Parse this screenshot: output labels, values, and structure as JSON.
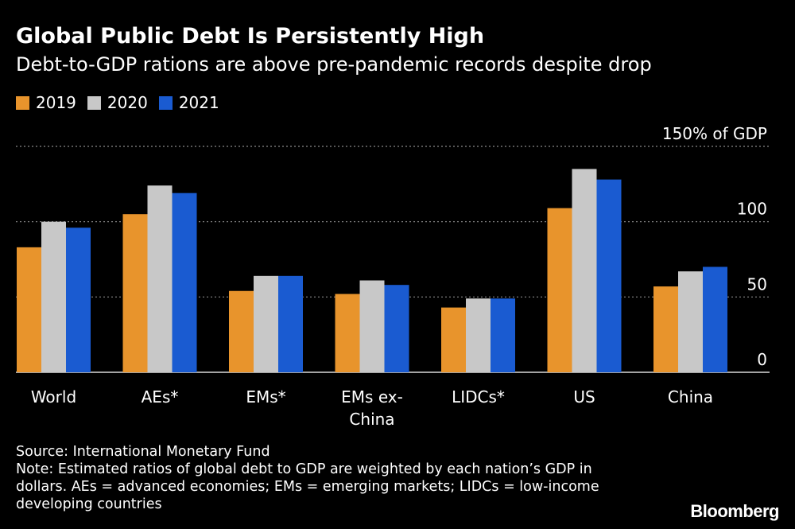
{
  "title": "Global Public Debt Is Persistently High",
  "subtitle": "Debt-to-GDP rations are above pre-pandemic records despite drop",
  "source": "Source: International Monetary Fund",
  "note_lines": [
    "Note: Estimated ratios of global debt to GDP are weighted by each nation’s GDP in",
    "dollars. AEs = advanced economies; EMs = emerging markets; LIDCs = low-income",
    "developing countries"
  ],
  "brand": "Bloomberg",
  "colors": {
    "2019": "#E8942C",
    "2020": "#C8C8C8",
    "2021": "#1A5BD1",
    "grid": "#8A8A8A",
    "background": "#000000",
    "text": "#FFFFFF"
  },
  "chart_data": {
    "type": "bar",
    "categories": [
      [
        "World"
      ],
      [
        "AEs*"
      ],
      [
        "EMs*"
      ],
      [
        "EMs ex-",
        "China"
      ],
      [
        "LIDCs*"
      ],
      [
        "US"
      ],
      [
        "China"
      ]
    ],
    "series": [
      {
        "name": "2019",
        "values": [
          83,
          105,
          54,
          52,
          43,
          109,
          57
        ]
      },
      {
        "name": "2020",
        "values": [
          100,
          124,
          64,
          61,
          49,
          135,
          67
        ]
      },
      {
        "name": "2021",
        "values": [
          96,
          119,
          64,
          58,
          49,
          128,
          70
        ]
      }
    ],
    "yticks": [
      "0",
      "50",
      "100",
      "150% of GDP"
    ],
    "ytick_values": [
      0,
      50,
      100,
      150
    ],
    "ylim": [
      0,
      150
    ],
    "grid": true,
    "legend": "top-left"
  }
}
